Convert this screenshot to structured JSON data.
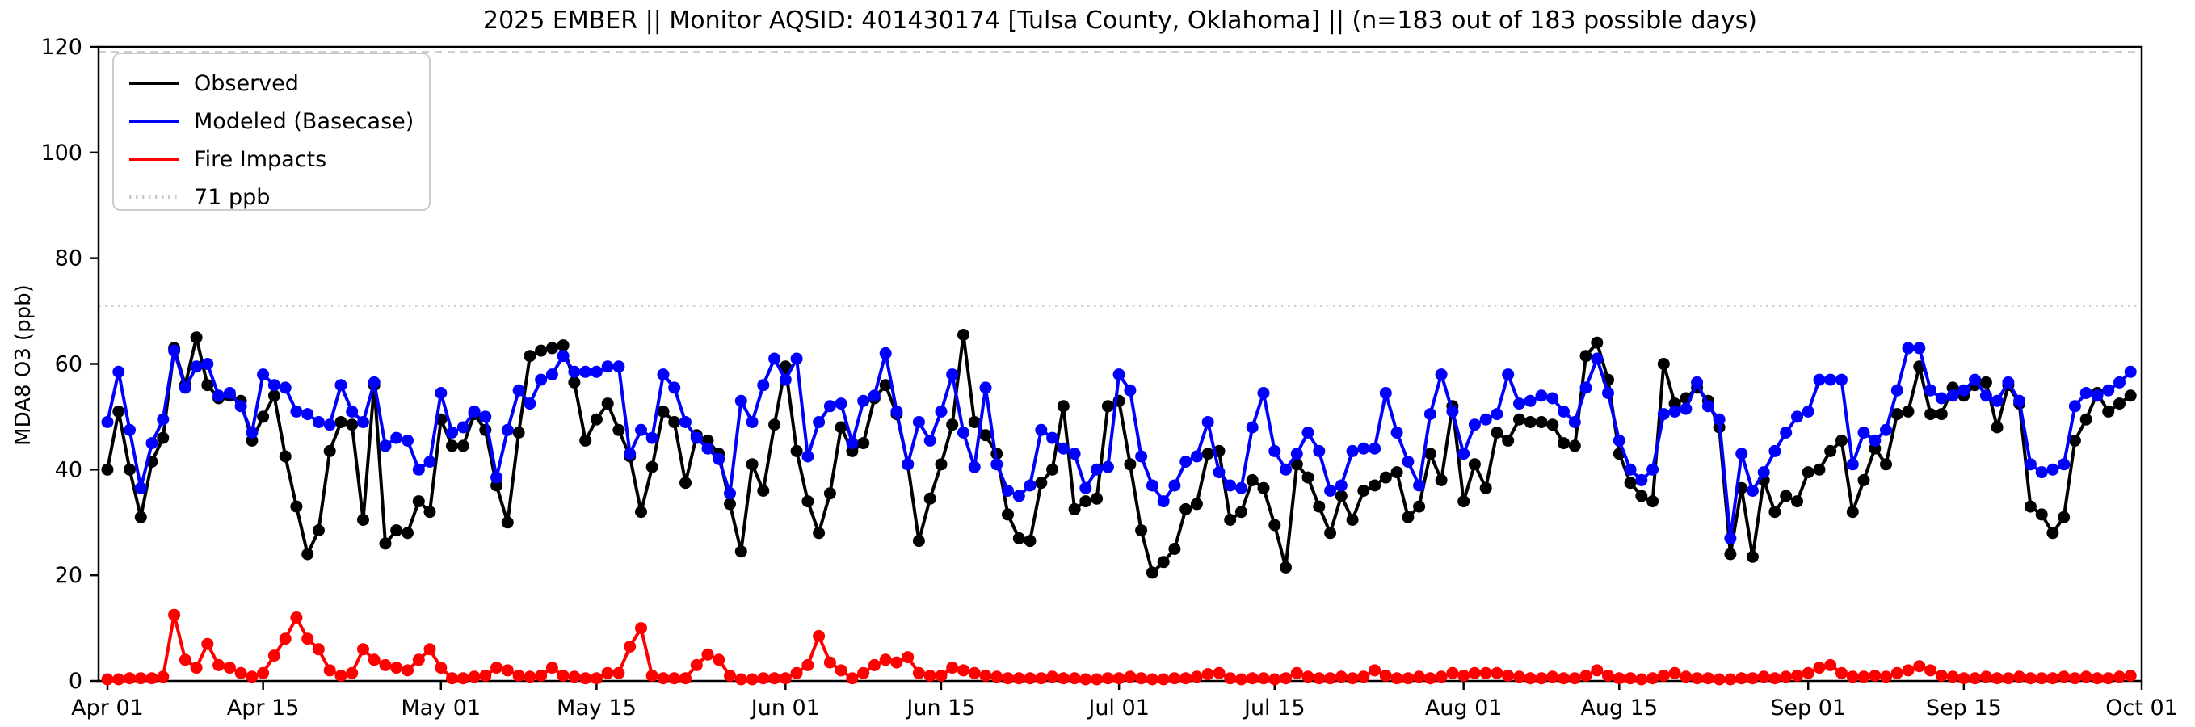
{
  "title": "2025 EMBER || Monitor AQSID: 401430174 [Tulsa County, Oklahoma] || (n=183 out of 183 possible days)",
  "y_axis": {
    "label": "MDA8 O3 (ppb)",
    "ticks": [
      0,
      20,
      40,
      60,
      80,
      100,
      120
    ],
    "min": 0,
    "max": 120
  },
  "x_axis": {
    "tick_labels": [
      "Apr 01",
      "Apr 15",
      "May 01",
      "May 15",
      "Jun 01",
      "Jun 15",
      "Jul 01",
      "Jul 15",
      "Aug 01",
      "Aug 15",
      "Sep 01",
      "Sep 15",
      "Oct 01"
    ],
    "tick_days": [
      0,
      14,
      30,
      44,
      61,
      75,
      91,
      105,
      122,
      136,
      153,
      167,
      183
    ],
    "n_days": 183
  },
  "legend": {
    "items": [
      {
        "label": "Observed",
        "color": "#000000",
        "dash": "solid"
      },
      {
        "label": "Modeled (Basecase)",
        "color": "#0000ff",
        "dash": "solid"
      },
      {
        "label": "Fire Impacts",
        "color": "#ff0000",
        "dash": "solid"
      },
      {
        "label": "71 ppb",
        "color": "#c9c9c9",
        "dash": "dotted"
      }
    ]
  },
  "chart_data": {
    "type": "line",
    "title": "2025 EMBER || Monitor AQSID: 401430174 [Tulsa County, Oklahoma] || (n=183 out of 183 possible days)",
    "xlabel": "",
    "ylabel": "MDA8 O3 (ppb)",
    "ylim": [
      0,
      120
    ],
    "x_range": [
      "Apr 01",
      "Sep 30"
    ],
    "grid": false,
    "legend_position": "upper-left",
    "threshold_line": {
      "value": 71,
      "label": "71 ppb",
      "color": "#c9c9c9",
      "style": "dotted"
    },
    "top_dotted_line_value": 119,
    "series": [
      {
        "name": "Observed",
        "color": "#000000",
        "marker": "circle",
        "values": [
          40,
          51,
          40,
          31,
          41.5,
          46,
          63,
          56,
          65,
          56,
          53.5,
          54,
          53,
          45.5,
          50,
          54,
          42.5,
          33,
          24,
          28.5,
          43.5,
          49,
          48.5,
          30.5,
          56,
          26,
          28.5,
          28,
          34,
          32,
          49.5,
          44.5,
          44.5,
          50.5,
          47.5,
          37,
          30,
          47,
          61.5,
          62.5,
          63,
          63.5,
          56.5,
          45.5,
          49.5,
          52.5,
          47.5,
          42.5,
          32,
          40.5,
          51,
          49,
          37.5,
          46.5,
          45.5,
          43,
          33.5,
          24.5,
          41,
          36,
          48.5,
          59.5,
          43.5,
          34,
          28,
          35.5,
          48,
          43.5,
          45,
          53.5,
          56,
          50.5,
          41,
          26.5,
          34.5,
          41,
          48.5,
          65.5,
          49,
          46.5,
          43,
          31.5,
          27,
          26.5,
          37.5,
          40,
          52,
          32.5,
          34,
          34.5,
          52,
          53,
          41,
          28.5,
          20.5,
          22.5,
          25,
          32.5,
          33.5,
          43,
          43.5,
          30.5,
          32,
          38,
          36.5,
          29.5,
          21.5,
          41,
          38.5,
          33,
          28,
          35,
          30.5,
          36,
          37,
          38.5,
          39.5,
          31,
          33,
          43,
          38,
          52,
          34,
          41,
          36.5,
          47,
          45.5,
          49.5,
          49,
          49,
          48.5,
          45,
          44.5,
          61.5,
          64,
          57,
          43,
          37.5,
          35,
          34,
          60,
          52.5,
          53.5,
          55.5,
          53,
          48,
          24,
          36.5,
          23.5,
          38,
          32,
          35,
          34,
          39.5,
          40,
          43.5,
          45.5,
          32,
          38,
          44,
          41,
          50.5,
          51,
          59.5,
          50.5,
          50.5,
          55.5,
          54,
          56,
          56.5,
          48,
          56,
          52.5,
          33,
          31.5,
          28,
          31,
          45.5,
          49.5,
          54.5,
          51,
          52.5,
          54
        ]
      },
      {
        "name": "Modeled (Basecase)",
        "color": "#0000ff",
        "marker": "circle",
        "values": [
          49,
          58.5,
          47.5,
          36.5,
          45,
          49.5,
          62.5,
          55.5,
          59.5,
          60,
          54,
          54.5,
          52,
          47,
          58,
          56,
          55.5,
          51,
          50.5,
          49,
          48.5,
          56,
          51,
          49,
          56.5,
          44.5,
          46,
          45.5,
          40,
          41.5,
          54.5,
          47,
          48,
          51,
          50,
          38.5,
          47.5,
          55,
          52.5,
          57,
          58,
          61.5,
          58.5,
          58.5,
          58.5,
          59.5,
          59.5,
          43,
          47.5,
          46,
          58,
          55.5,
          49,
          46,
          44,
          42,
          35.5,
          53,
          49,
          56,
          61,
          57,
          61,
          42.5,
          49,
          52,
          52.5,
          45,
          53,
          54,
          62,
          51,
          41,
          49,
          45.5,
          51,
          58,
          47,
          40.5,
          55.5,
          41,
          36,
          35,
          37,
          47.5,
          46,
          44,
          43,
          36.5,
          40,
          40.5,
          58,
          55,
          42.5,
          37,
          34,
          37,
          41.5,
          42.5,
          49,
          39.5,
          37,
          36.5,
          48,
          54.5,
          43.5,
          40,
          43,
          47,
          43.5,
          36,
          37,
          43.5,
          44,
          44,
          54.5,
          47,
          41.5,
          37,
          50.5,
          58,
          51,
          43,
          48.5,
          49.5,
          50.5,
          58,
          52.5,
          53,
          54,
          53.5,
          51,
          49,
          55.5,
          61,
          54.5,
          45.5,
          40,
          38,
          40,
          50.5,
          51,
          51.5,
          56.5,
          52,
          49.5,
          27,
          43,
          36,
          39.5,
          43.5,
          47,
          50,
          51,
          57,
          57,
          57,
          41,
          47,
          45.5,
          47.5,
          55,
          63,
          63,
          55,
          53.5,
          54,
          55,
          57,
          54,
          53,
          56.5,
          53,
          41,
          39.5,
          40,
          41,
          52,
          54.5,
          54,
          55,
          56.5,
          58.5
        ]
      },
      {
        "name": "Fire Impacts",
        "color": "#ff0000",
        "marker": "circle",
        "values": [
          0.3,
          0.3,
          0.5,
          0.5,
          0.5,
          0.8,
          12.5,
          4,
          2.5,
          7,
          3,
          2.5,
          1.5,
          0.8,
          1.5,
          4.8,
          8,
          12,
          8,
          6,
          2,
          1,
          1.5,
          6,
          4,
          3,
          2.5,
          2,
          4,
          6,
          2.5,
          0.5,
          0.5,
          0.8,
          1,
          2.5,
          2,
          1,
          0.8,
          1,
          2.5,
          1,
          0.8,
          0.5,
          0.5,
          1.5,
          1.5,
          6.5,
          10,
          1,
          0.5,
          0.5,
          0.5,
          3,
          5,
          4,
          1,
          0.3,
          0.3,
          0.5,
          0.5,
          0.5,
          1.5,
          3,
          8.5,
          3.5,
          2,
          0.5,
          1.5,
          3,
          4,
          3.5,
          4.5,
          1.5,
          1,
          1,
          2.5,
          2,
          1.5,
          1,
          0.8,
          0.5,
          0.5,
          0.5,
          0.5,
          0.8,
          0.5,
          0.5,
          0.3,
          0.3,
          0.5,
          0.5,
          0.8,
          0.5,
          0.3,
          0.3,
          0.5,
          0.5,
          0.8,
          1.3,
          1.5,
          0.5,
          0.3,
          0.5,
          0.5,
          0.3,
          0.5,
          1.5,
          0.8,
          0.5,
          0.5,
          0.8,
          0.5,
          0.8,
          2,
          1,
          0.5,
          0.5,
          0.8,
          0.5,
          0.8,
          1.5,
          1,
          1.5,
          1.5,
          1.5,
          1,
          0.8,
          0.5,
          0.5,
          0.8,
          0.5,
          0.5,
          1,
          2,
          1,
          0.5,
          0.5,
          0.3,
          0.5,
          1,
          1.5,
          0.8,
          0.5,
          0.5,
          0.3,
          0.3,
          0.5,
          0.5,
          0.8,
          0.5,
          0.8,
          1,
          1.5,
          2.5,
          3,
          1.5,
          0.8,
          0.8,
          1,
          0.8,
          1.5,
          2,
          2.8,
          2,
          1,
          0.8,
          0.5,
          0.5,
          0.8,
          0.5,
          0.5,
          0.8,
          0.5,
          0.5,
          0.5,
          0.8,
          0.5,
          0.8,
          0.5,
          0.5,
          0.8,
          1
        ]
      }
    ]
  }
}
